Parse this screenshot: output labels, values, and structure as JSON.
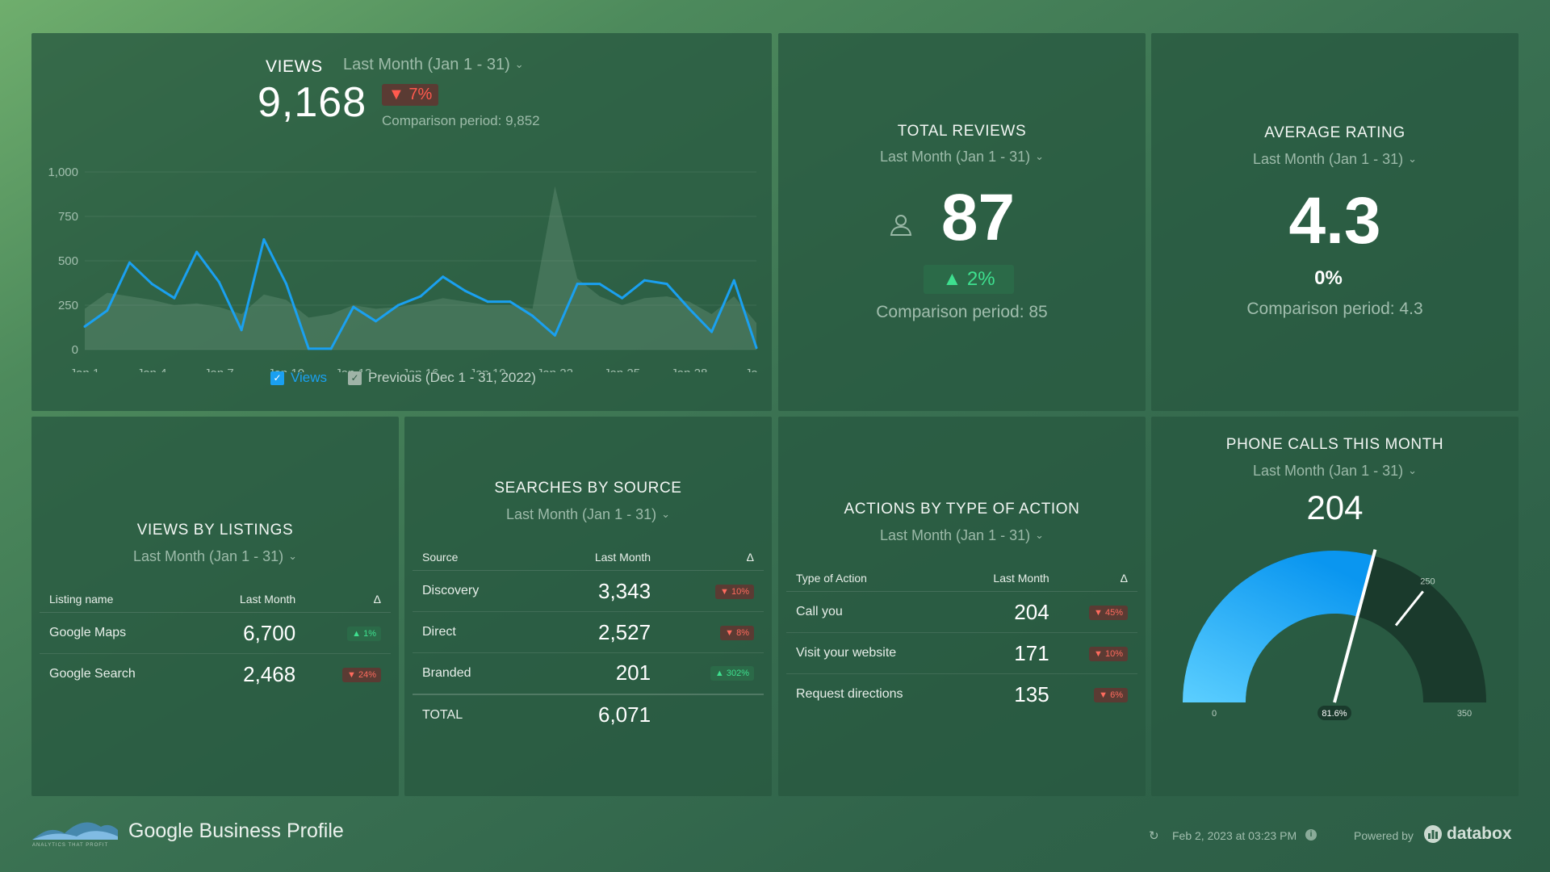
{
  "colors": {
    "accent_blue": "#1aa0f0",
    "positive": "#3ee08f",
    "negative": "#ff5a4e"
  },
  "views": {
    "title": "VIEWS",
    "period": "Last Month (Jan 1 - 31)",
    "value": "9,168",
    "change": "7%",
    "comparison": "Comparison period: 9,852",
    "legend_current": "Views",
    "legend_previous": "Previous (Dec 1 - 31, 2022)"
  },
  "chart_data": {
    "type": "line",
    "x": [
      "Jan 1",
      "Jan 2",
      "Jan 3",
      "Jan 4",
      "Jan 5",
      "Jan 6",
      "Jan 7",
      "Jan 8",
      "Jan 9",
      "Jan 10",
      "Jan 11",
      "Jan 12",
      "Jan 13",
      "Jan 14",
      "Jan 15",
      "Jan 16",
      "Jan 17",
      "Jan 18",
      "Jan 19",
      "Jan 20",
      "Jan 21",
      "Jan 22",
      "Jan 23",
      "Jan 24",
      "Jan 25",
      "Jan 26",
      "Jan 27",
      "Jan 28",
      "Jan 29",
      "Jan 30",
      "Jan 31"
    ],
    "tick_labels": [
      "Jan 1",
      "Jan 4",
      "Jan 7",
      "Jan 10",
      "Jan 13",
      "Jan 16",
      "Jan 19",
      "Jan 22",
      "Jan 25",
      "Jan 28",
      "Ja..."
    ],
    "ytick_labels": [
      "1,000",
      "750",
      "500",
      "250",
      "0"
    ],
    "ylim": [
      0,
      1000
    ],
    "grid": true,
    "legend": "bottom",
    "series": [
      {
        "name": "Views",
        "values": [
          130,
          220,
          490,
          370,
          290,
          550,
          380,
          110,
          620,
          370,
          5,
          5,
          240,
          160,
          250,
          300,
          410,
          330,
          270,
          270,
          190,
          80,
          370,
          370,
          290,
          390,
          370,
          230,
          100,
          390,
          10
        ]
      },
      {
        "name": "Previous (Dec 1 - 31, 2022)",
        "values": [
          230,
          320,
          300,
          280,
          250,
          260,
          240,
          200,
          310,
          280,
          180,
          200,
          250,
          230,
          240,
          260,
          290,
          270,
          250,
          250,
          230,
          920,
          400,
          300,
          250,
          290,
          300,
          270,
          200,
          300,
          150
        ]
      }
    ]
  },
  "total_reviews": {
    "title": "TOTAL REVIEWS",
    "period": "Last Month (Jan 1 - 31)",
    "value": "87",
    "change": "2%",
    "comparison": "Comparison period: 85"
  },
  "average_rating": {
    "title": "AVERAGE RATING",
    "period": "Last Month (Jan 1 - 31)",
    "value": "4.3",
    "change": "0%",
    "comparison": "Comparison period: 4.3"
  },
  "views_by_listings": {
    "title": "VIEWS BY LISTINGS",
    "period": "Last Month (Jan 1 - 31)",
    "headers": [
      "Listing name",
      "Last Month",
      "Δ"
    ],
    "rows": [
      {
        "name": "Google Maps",
        "value": "6,700",
        "delta": "1%",
        "dir": "up"
      },
      {
        "name": "Google Search",
        "value": "2,468",
        "delta": "24%",
        "dir": "down"
      }
    ]
  },
  "searches_by_source": {
    "title": "SEARCHES BY SOURCE",
    "period": "Last Month (Jan 1 - 31)",
    "headers": [
      "Source",
      "Last Month",
      "Δ"
    ],
    "rows": [
      {
        "name": "Discovery",
        "value": "3,343",
        "delta": "10%",
        "dir": "down"
      },
      {
        "name": "Direct",
        "value": "2,527",
        "delta": "8%",
        "dir": "down"
      },
      {
        "name": "Branded",
        "value": "201",
        "delta": "302%",
        "dir": "up"
      }
    ],
    "total_label": "TOTAL",
    "total_value": "6,071"
  },
  "actions_by_type": {
    "title": "ACTIONS BY TYPE OF ACTION",
    "period": "Last Month (Jan 1 - 31)",
    "headers": [
      "Type of Action",
      "Last Month",
      "Δ"
    ],
    "rows": [
      {
        "name": "Call you",
        "value": "204",
        "delta": "45%",
        "dir": "down"
      },
      {
        "name": "Visit your website",
        "value": "171",
        "delta": "10%",
        "dir": "down"
      },
      {
        "name": "Request directions",
        "value": "135",
        "delta": "6%",
        "dir": "down"
      }
    ]
  },
  "phone_calls": {
    "title": "PHONE CALLS THIS MONTH",
    "period": "Last Month (Jan 1 - 31)",
    "value": "204",
    "gauge_value": 204,
    "gauge_min": 0,
    "gauge_max": 350,
    "gauge_target": 250,
    "min_label": "0",
    "max_label": "350",
    "target_label": "250",
    "percent_label": "81.6%"
  },
  "footer": {
    "logo_caption": "ANALYTICS THAT PROFIT",
    "title": "Google Business Profile",
    "timestamp": "Feb 2, 2023 at 03:23 PM",
    "powered_by": "Powered by",
    "brand": "databox"
  }
}
